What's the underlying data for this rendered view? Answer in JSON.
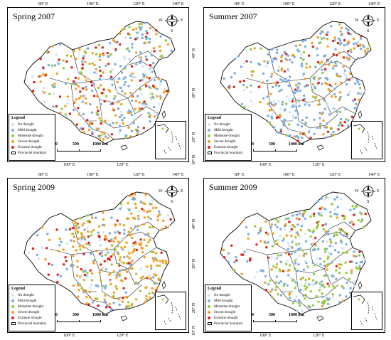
{
  "panels": [
    {
      "title": "Spring 2007"
    },
    {
      "title": "Summer 2007"
    },
    {
      "title": "Spring 2009"
    },
    {
      "title": "Summer 2009"
    }
  ],
  "axes": {
    "top": [
      "80° E",
      "100° E",
      "120° E",
      "140° E"
    ],
    "bottom": [
      "100° E",
      "120° E"
    ],
    "left": [
      "40° N",
      "30° N",
      "20° N",
      "10° N"
    ]
  },
  "legend": {
    "title": "Legend",
    "items": [
      {
        "label": "No drought",
        "color": "#cfe4f5"
      },
      {
        "label": "Mild drought",
        "color": "#7aaee0"
      },
      {
        "label": "Moderate drought",
        "color": "#9acb3c"
      },
      {
        "label": "Severe drought",
        "color": "#f0a020"
      },
      {
        "label": "Extreme drought",
        "color": "#e0201a"
      }
    ],
    "boundary_label": "Provincial boundary"
  },
  "scale": {
    "zero": "0",
    "mid": "500",
    "end": "1000",
    "unit": "km"
  },
  "compass": {
    "w": "W",
    "e": "E",
    "s": "S"
  }
}
